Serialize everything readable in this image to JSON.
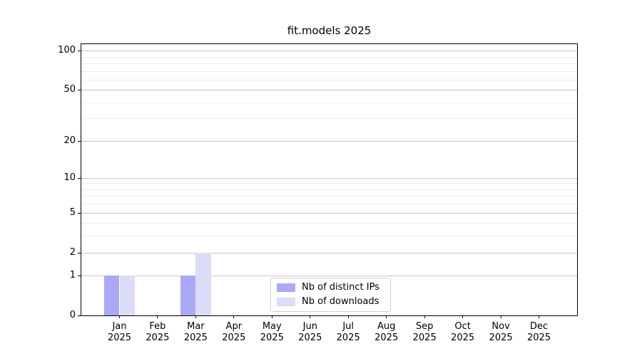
{
  "chart_data": {
    "type": "bar",
    "title": "fit.models 2025",
    "categories": [
      "Jan",
      "Feb",
      "Mar",
      "Apr",
      "May",
      "Jun",
      "Jul",
      "Aug",
      "Sep",
      "Oct",
      "Nov",
      "Dec"
    ],
    "category_year": "2025",
    "series": [
      {
        "name": "Nb of distinct IPs",
        "color": "#a9a9f5",
        "values": [
          1,
          0,
          1,
          0,
          0,
          0,
          0,
          0,
          0,
          0,
          0,
          0
        ]
      },
      {
        "name": "Nb of downloads",
        "color": "#dbdbfa",
        "values": [
          1,
          0,
          2,
          0,
          0,
          0,
          0,
          0,
          0,
          0,
          0,
          0
        ]
      }
    ],
    "yscale": "log1p",
    "ylim": [
      0,
      112
    ],
    "yticks": [
      0,
      1,
      2,
      5,
      10,
      20,
      50,
      100
    ],
    "yticks_minor": [
      3,
      4,
      6,
      7,
      8,
      9,
      30,
      40,
      60,
      70,
      80,
      90
    ],
    "grid": "horizontal",
    "legend_position": "lower-center",
    "xlabel": "",
    "ylabel": ""
  },
  "colors": {
    "grid_major": "#c6c6c6",
    "grid_minor": "#ececec",
    "spine": "#000000",
    "legend_border": "#d0d0d0",
    "text": "#000000"
  }
}
